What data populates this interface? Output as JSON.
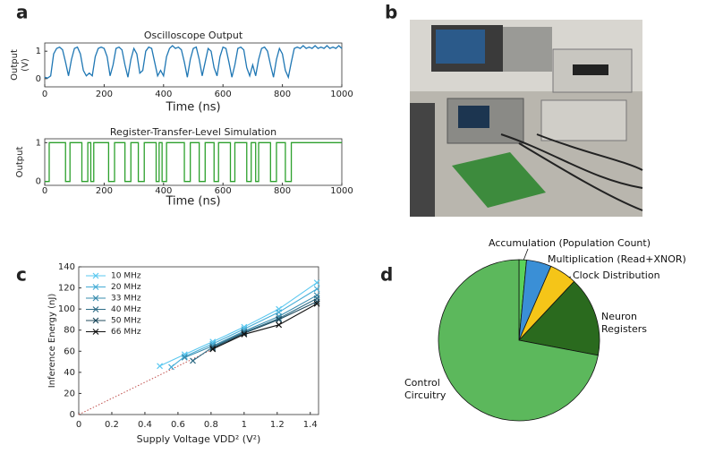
{
  "panel_labels": [
    "a",
    "b",
    "c",
    "d"
  ],
  "chart_data": [
    {
      "type": "line",
      "title": "Oscilloscope Output",
      "xlabel": "Time (ns)",
      "ylabel": [
        "Output",
        "(V)"
      ],
      "xlim": [
        0,
        1000
      ],
      "ylim": [
        -0.3,
        1.3
      ],
      "xticks": [
        0,
        200,
        400,
        600,
        800,
        1000
      ],
      "yticks": [
        0,
        1
      ],
      "series": [
        {
          "color": "#1f77b4",
          "x": [
            0,
            10,
            20,
            30,
            40,
            50,
            60,
            70,
            80,
            90,
            100,
            110,
            120,
            130,
            140,
            150,
            160,
            170,
            180,
            190,
            200,
            210,
            220,
            230,
            240,
            250,
            260,
            270,
            280,
            290,
            300,
            310,
            320,
            330,
            340,
            350,
            360,
            370,
            380,
            390,
            400,
            410,
            420,
            430,
            440,
            450,
            460,
            470,
            480,
            490,
            500,
            510,
            520,
            530,
            540,
            550,
            560,
            570,
            580,
            590,
            600,
            610,
            620,
            630,
            640,
            650,
            660,
            670,
            680,
            690,
            700,
            710,
            720,
            730,
            740,
            750,
            760,
            770,
            780,
            790,
            800,
            810,
            820,
            830,
            840,
            850,
            860,
            870,
            880,
            890,
            900,
            910,
            920,
            930,
            940,
            950,
            960,
            970,
            980,
            990,
            1000
          ],
          "values": [
            0.05,
            0.02,
            0.1,
            0.9,
            1.1,
            1.15,
            1.05,
            0.6,
            0.1,
            0.7,
            1.1,
            1.15,
            0.9,
            0.3,
            0.1,
            0.2,
            0.1,
            0.8,
            1.1,
            1.15,
            1.1,
            0.8,
            0.1,
            0.5,
            1.1,
            1.15,
            1.05,
            0.5,
            0.05,
            0.7,
            1.1,
            0.9,
            0.2,
            0.3,
            1.0,
            1.15,
            1.1,
            0.6,
            0.1,
            0.3,
            0.1,
            0.8,
            1.1,
            1.2,
            1.1,
            1.15,
            1.05,
            0.6,
            0.05,
            0.7,
            1.1,
            1.15,
            0.7,
            0.1,
            0.6,
            1.1,
            1.0,
            0.4,
            0.1,
            0.8,
            1.15,
            1.1,
            0.6,
            0.05,
            0.5,
            1.1,
            1.15,
            1.05,
            0.4,
            0.1,
            0.5,
            0.1,
            0.7,
            1.1,
            1.15,
            1.0,
            0.5,
            0.05,
            0.7,
            1.1,
            0.9,
            0.3,
            0.05,
            0.6,
            1.1,
            1.15,
            1.1,
            1.2,
            1.1,
            1.15,
            1.1,
            1.2,
            1.1,
            1.15,
            1.1,
            1.2,
            1.1,
            1.15,
            1.1,
            1.2,
            1.1
          ]
        }
      ]
    },
    {
      "type": "line",
      "title": "Register-Transfer-Level Simulation",
      "xlabel": "Time (ns)",
      "ylabel": [
        "Output"
      ],
      "xlim": [
        0,
        1000
      ],
      "ylim": [
        -0.1,
        1.1
      ],
      "xticks": [
        0,
        200,
        400,
        600,
        800,
        1000
      ],
      "yticks": [
        0,
        1
      ],
      "series": [
        {
          "color": "#2ca02c",
          "x": [
            0,
            15,
            15,
            70,
            70,
            85,
            85,
            125,
            125,
            145,
            145,
            155,
            155,
            165,
            165,
            215,
            215,
            235,
            235,
            270,
            270,
            290,
            290,
            315,
            315,
            335,
            335,
            375,
            375,
            385,
            385,
            395,
            395,
            410,
            410,
            470,
            470,
            490,
            490,
            520,
            520,
            540,
            540,
            570,
            570,
            585,
            585,
            625,
            625,
            640,
            640,
            680,
            680,
            695,
            695,
            710,
            710,
            720,
            720,
            760,
            760,
            780,
            780,
            810,
            810,
            830,
            830,
            1000
          ],
          "values": [
            0,
            0,
            1,
            1,
            0,
            0,
            1,
            1,
            0,
            0,
            1,
            1,
            0,
            0,
            1,
            1,
            0,
            0,
            1,
            1,
            0,
            0,
            1,
            1,
            0,
            0,
            1,
            1,
            0,
            0,
            1,
            1,
            0,
            0,
            1,
            1,
            0,
            0,
            1,
            1,
            0,
            0,
            1,
            1,
            0,
            0,
            1,
            1,
            0,
            0,
            1,
            1,
            0,
            0,
            1,
            1,
            0,
            0,
            1,
            1,
            0,
            0,
            1,
            1,
            0,
            0,
            1,
            1
          ]
        }
      ]
    },
    {
      "type": "line",
      "xlabel": "Supply Voltage VDD² (V²)",
      "ylabel": [
        "Inference Energy (nJ)"
      ],
      "xlim": [
        0,
        1.45
      ],
      "ylim": [
        0,
        140
      ],
      "xticks": [
        0,
        0.2,
        0.4,
        0.6,
        0.8,
        1,
        1.2,
        1.4
      ],
      "yticks": [
        0,
        20,
        40,
        60,
        80,
        100,
        120,
        140
      ],
      "marker": "x",
      "legend": "upper-left",
      "fit_line": {
        "x": [
          0,
          0.85
        ],
        "values": [
          0,
          65
        ],
        "color": "#c0504d"
      },
      "series": [
        {
          "name": "10 MHz",
          "color": "#5bc8f0",
          "x": [
            0.49,
            0.64,
            0.81,
            1.0,
            1.21,
            1.44
          ],
          "values": [
            46,
            57,
            69,
            83,
            100,
            125
          ]
        },
        {
          "name": "20 MHz",
          "color": "#45acd6",
          "x": [
            0.56,
            0.64,
            0.81,
            1.0,
            1.21,
            1.44
          ],
          "values": [
            45,
            55,
            67,
            81,
            97,
            119
          ]
        },
        {
          "name": "33 MHz",
          "color": "#3a8cae",
          "x": [
            0.64,
            0.81,
            1.0,
            1.21,
            1.44
          ],
          "values": [
            54,
            65,
            79,
            93,
            113
          ]
        },
        {
          "name": "40 MHz",
          "color": "#2e6c86",
          "x": [
            0.69,
            0.81,
            1.0,
            1.21,
            1.44
          ],
          "values": [
            51,
            64,
            78,
            91,
            110
          ]
        },
        {
          "name": "50 MHz",
          "color": "#204b5e",
          "x": [
            0.81,
            1.0,
            1.21,
            1.44
          ],
          "values": [
            63,
            77,
            90,
            107
          ]
        },
        {
          "name": "66 MHz",
          "color": "#111111",
          "x": [
            0.81,
            1.0,
            1.21,
            1.44
          ],
          "values": [
            62,
            76,
            85,
            105
          ]
        }
      ]
    },
    {
      "type": "pie",
      "categories": [
        "Accumulation (Population Count)",
        "Multiplication (Read+XNOR)",
        "Clock Distribution",
        "Neuron Registers",
        "Control Circuitry"
      ],
      "values": [
        1.5,
        5,
        5.5,
        16,
        72
      ],
      "colors": [
        "#5ad25a",
        "#3a8fd6",
        "#f5c518",
        "#2a6a1e",
        "#5cb85c"
      ]
    }
  ]
}
